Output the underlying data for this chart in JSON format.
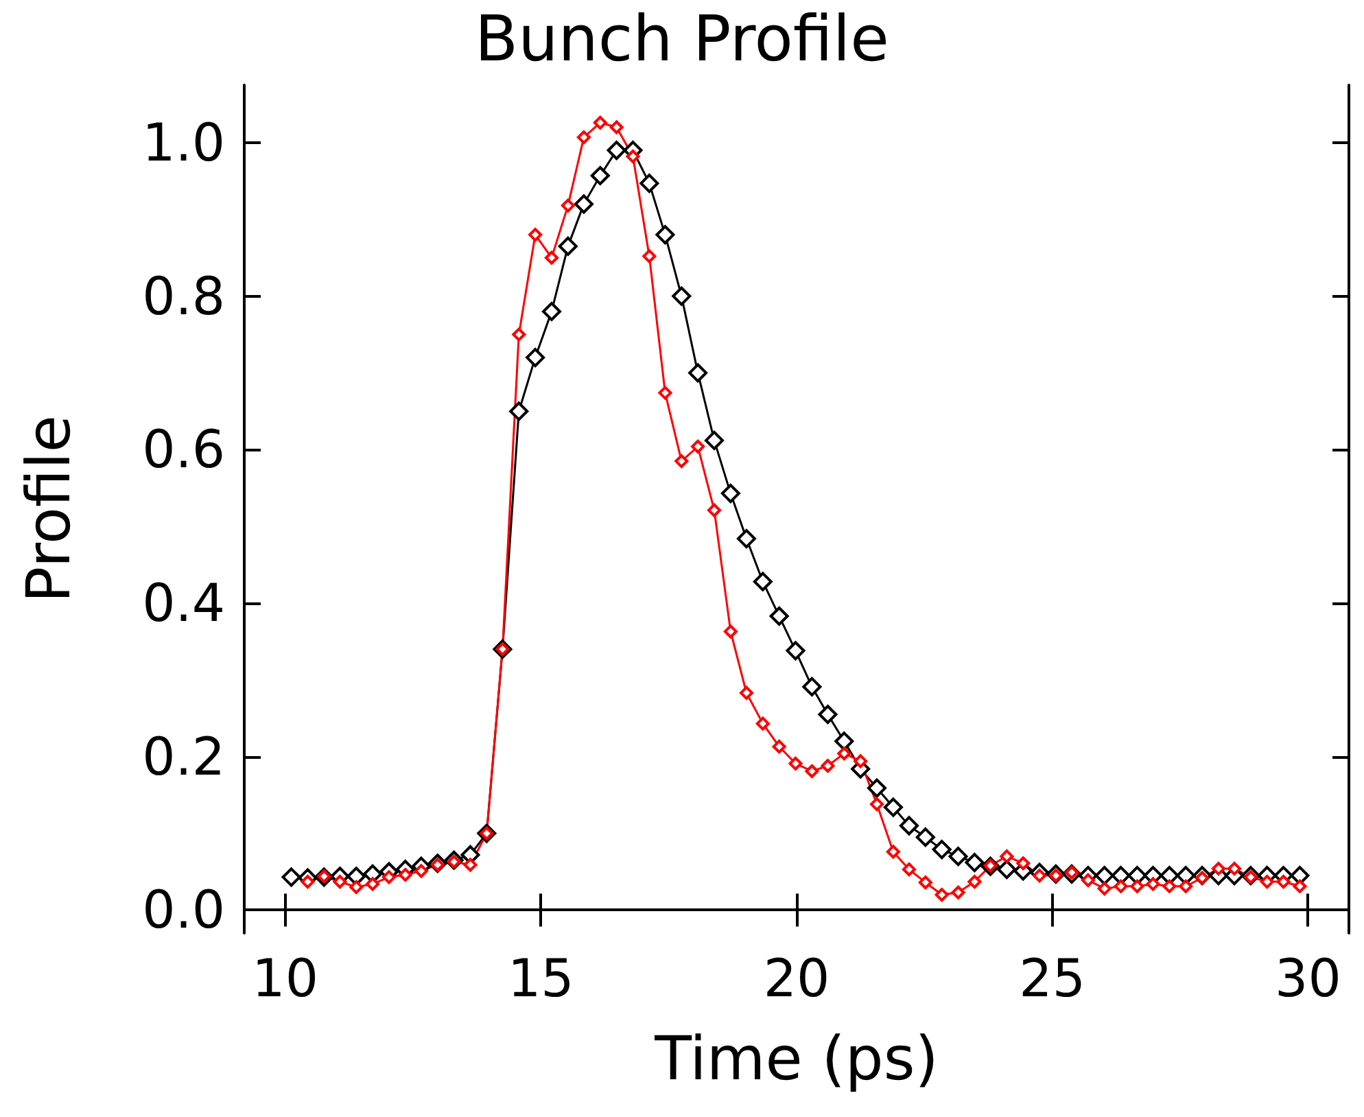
{
  "chart_data": {
    "type": "line",
    "title": "Bunch Profile",
    "xlabel": "Time (ps)",
    "ylabel": "Profile",
    "x": [
      10.12,
      10.44,
      10.76,
      11.07,
      11.39,
      11.71,
      12.03,
      12.35,
      12.66,
      12.98,
      13.3,
      13.62,
      13.94,
      14.25,
      14.57,
      14.89,
      15.21,
      15.53,
      15.84,
      16.16,
      16.48,
      16.8,
      17.12,
      17.43,
      17.75,
      18.07,
      18.39,
      18.71,
      19.02,
      19.34,
      19.66,
      19.98,
      20.3,
      20.61,
      20.93,
      21.25,
      21.57,
      21.89,
      22.2,
      22.52,
      22.84,
      23.16,
      23.48,
      23.79,
      24.11,
      24.43,
      24.75,
      25.07,
      25.38,
      25.7,
      26.02,
      26.34,
      26.66,
      26.97,
      27.29,
      27.61,
      27.93,
      28.25,
      28.56,
      28.88,
      29.2,
      29.52,
      29.84
    ],
    "series": [
      {
        "color": "#000000",
        "values": [
          0.043,
          0.042,
          0.043,
          0.044,
          0.044,
          0.047,
          0.05,
          0.053,
          0.057,
          0.061,
          0.065,
          0.072,
          0.1,
          0.34,
          0.65,
          0.72,
          0.78,
          0.865,
          0.92,
          0.957,
          0.99,
          0.99,
          0.947,
          0.88,
          0.8,
          0.7,
          0.612,
          0.543,
          0.484,
          0.428,
          0.383,
          0.338,
          0.291,
          0.255,
          0.22,
          0.184,
          0.159,
          0.134,
          0.11,
          0.095,
          0.079,
          0.07,
          0.062,
          0.057,
          0.053,
          0.051,
          0.049,
          0.047,
          0.047,
          0.045,
          0.045,
          0.045,
          0.045,
          0.045,
          0.045,
          0.045,
          0.045,
          0.045,
          0.045,
          0.045,
          0.045,
          0.045,
          0.045
        ]
      },
      {
        "color": "#ff0000",
        "values": [
          null,
          0.037,
          0.044,
          0.037,
          0.03,
          0.034,
          0.043,
          0.046,
          0.051,
          0.059,
          0.063,
          0.059,
          0.1,
          0.34,
          0.75,
          0.88,
          0.85,
          0.918,
          1.007,
          1.026,
          1.02,
          0.982,
          0.852,
          0.674,
          0.585,
          0.604,
          0.521,
          0.363,
          0.283,
          0.243,
          0.213,
          0.191,
          0.181,
          0.188,
          0.204,
          0.194,
          0.138,
          0.076,
          0.053,
          0.036,
          0.02,
          0.023,
          0.037,
          0.058,
          0.07,
          0.061,
          0.045,
          0.045,
          0.049,
          0.039,
          0.028,
          0.031,
          0.031,
          0.034,
          0.031,
          0.031,
          0.042,
          0.054,
          0.054,
          0.043,
          0.037,
          0.037,
          0.031
        ]
      }
    ],
    "xlim": [
      9.2,
      30.8
    ],
    "xticks": [
      10,
      15,
      20,
      25,
      30
    ],
    "ylim": [
      -0.03,
      1.075
    ],
    "yticks": [
      {
        "value": 0,
        "label": "0.0"
      },
      {
        "value": 0.2,
        "label": "0.2"
      },
      {
        "value": 0.4,
        "label": "0.4"
      },
      {
        "value": 0.6,
        "label": "0.6"
      },
      {
        "value": 0.8,
        "label": "0.8"
      },
      {
        "value": 1,
        "label": "1.0"
      }
    ],
    "marker": "diamond",
    "line_style": "solid",
    "grid": false
  }
}
